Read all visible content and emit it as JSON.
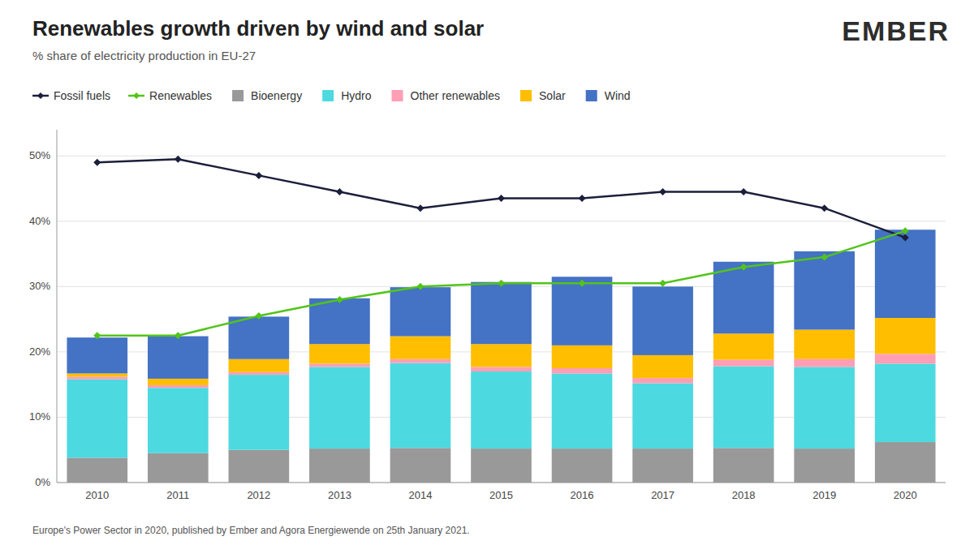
{
  "chart_data": {
    "type": "bar",
    "stacked": true,
    "title": "Renewables growth driven by wind and solar",
    "subtitle": "% share of electricity production in EU-27",
    "annotations": [
      "EMBER",
      "Europe's Power Sector in 2020, published by Ember and Agora Energiewende on 25th January 2021."
    ],
    "categories": [
      "2010",
      "2011",
      "2012",
      "2013",
      "2014",
      "2015",
      "2016",
      "2017",
      "2018",
      "2019",
      "2020"
    ],
    "series": [
      {
        "name": "Bioenergy",
        "type": "bar",
        "color": "#999999",
        "values": [
          3.8,
          4.5,
          5.0,
          5.2,
          5.3,
          5.2,
          5.2,
          5.2,
          5.3,
          5.2,
          6.2
        ]
      },
      {
        "name": "Hydro",
        "type": "bar",
        "color": "#4dd9e0",
        "values": [
          12.0,
          10.0,
          11.5,
          12.5,
          13.0,
          11.8,
          11.5,
          10.0,
          12.5,
          12.5,
          12.0
        ]
      },
      {
        "name": "Other renewables",
        "type": "bar",
        "color": "#ff9eb5",
        "values": [
          0.4,
          0.4,
          0.4,
          0.5,
          0.6,
          0.7,
          0.8,
          0.8,
          1.0,
          1.2,
          1.5
        ]
      },
      {
        "name": "Solar",
        "type": "bar",
        "color": "#ffbe00",
        "values": [
          0.5,
          1.0,
          2.0,
          3.0,
          3.5,
          3.5,
          3.5,
          3.5,
          4.0,
          4.5,
          5.5
        ]
      },
      {
        "name": "Wind",
        "type": "bar",
        "color": "#4472c4",
        "values": [
          5.5,
          6.5,
          6.5,
          7.0,
          7.5,
          9.5,
          10.5,
          10.5,
          11.0,
          12.0,
          13.5
        ]
      },
      {
        "name": "Fossil fuels",
        "type": "line",
        "color": "#1c1f3b",
        "marker": "diamond",
        "values": [
          49.0,
          49.5,
          47.0,
          44.5,
          42.0,
          43.5,
          43.5,
          44.5,
          44.5,
          42.0,
          37.5
        ]
      },
      {
        "name": "Renewables",
        "type": "line",
        "color": "#52c41a",
        "marker": "diamond",
        "values": [
          22.5,
          22.5,
          25.5,
          28.0,
          30.0,
          30.5,
          30.5,
          30.5,
          33.0,
          34.5,
          38.5
        ]
      }
    ],
    "ylim": [
      0,
      54
    ],
    "yticks": [
      {
        "value": 0,
        "label": "0%"
      },
      {
        "value": 10,
        "label": "10%"
      },
      {
        "value": 20,
        "label": "20%"
      },
      {
        "value": 30,
        "label": "30%"
      },
      {
        "value": 40,
        "label": "40%"
      },
      {
        "value": 50,
        "label": "50%"
      }
    ],
    "grid": true
  }
}
